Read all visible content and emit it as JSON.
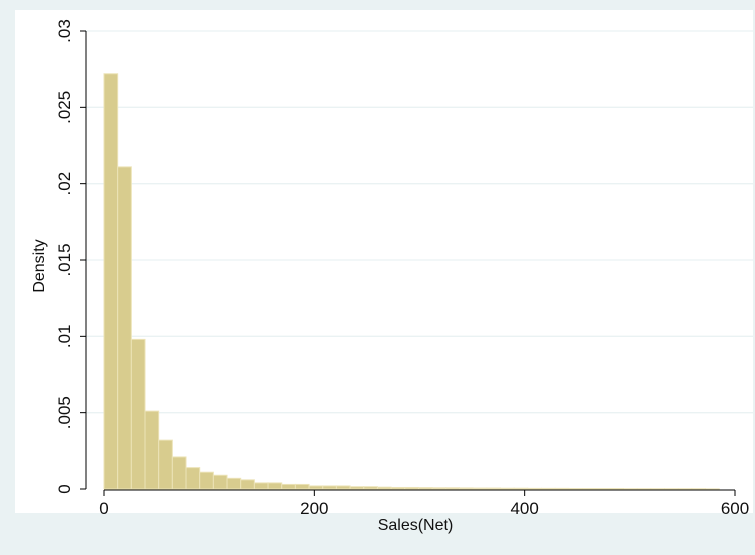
{
  "chart_data": {
    "type": "bar",
    "title": "",
    "xlabel": "Sales(Net)",
    "ylabel": "Density",
    "xlim": [
      0,
      600
    ],
    "ylim": [
      0,
      0.03
    ],
    "grid": true,
    "x_ticks": [
      {
        "value": 0,
        "label": "0"
      },
      {
        "value": 200,
        "label": "200"
      },
      {
        "value": 400,
        "label": "400"
      },
      {
        "value": 600,
        "label": "600"
      }
    ],
    "y_ticks": [
      {
        "value": 0,
        "label": "0"
      },
      {
        "value": 0.005,
        "label": ".005"
      },
      {
        "value": 0.01,
        "label": ".01"
      },
      {
        "value": 0.015,
        "label": ".015"
      },
      {
        "value": 0.02,
        "label": ".02"
      },
      {
        "value": 0.025,
        "label": ".025"
      },
      {
        "value": 0.03,
        "label": ".03"
      }
    ],
    "bin_width": 13,
    "bin_starts": [
      0,
      13,
      26,
      39,
      52,
      65,
      78,
      91,
      104,
      117,
      130,
      143,
      156,
      169,
      182,
      195,
      208,
      221,
      234,
      247,
      260,
      273,
      286,
      299,
      312,
      325,
      338,
      351,
      364,
      377,
      390,
      403,
      416,
      429,
      442,
      455,
      468,
      481,
      494,
      507,
      520,
      533,
      546,
      559,
      572
    ],
    "values": [
      0.0272,
      0.0211,
      0.0098,
      0.0051,
      0.0032,
      0.0021,
      0.0014,
      0.0011,
      0.0009,
      0.0007,
      0.0006,
      0.0004,
      0.0004,
      0.0003,
      0.0003,
      0.0002,
      0.0002,
      0.0002,
      0.00015,
      0.00015,
      0.00012,
      0.0001,
      0.0001,
      9e-05,
      8e-05,
      8e-05,
      7e-05,
      6e-05,
      6e-05,
      5e-05,
      5e-05,
      4e-05,
      4e-05,
      4e-05,
      3e-05,
      3e-05,
      3e-05,
      3e-05,
      2e-05,
      2e-05,
      2e-05,
      2e-05,
      2e-05,
      2e-05,
      1e-05
    ],
    "colors": {
      "outer_background": "#eaf2f3",
      "plot_background": "#ffffff",
      "bar_fill": "#d8cc8e",
      "bar_stroke": "#ece3b7",
      "grid": "#eaf2f3",
      "axis": "#000000"
    }
  }
}
